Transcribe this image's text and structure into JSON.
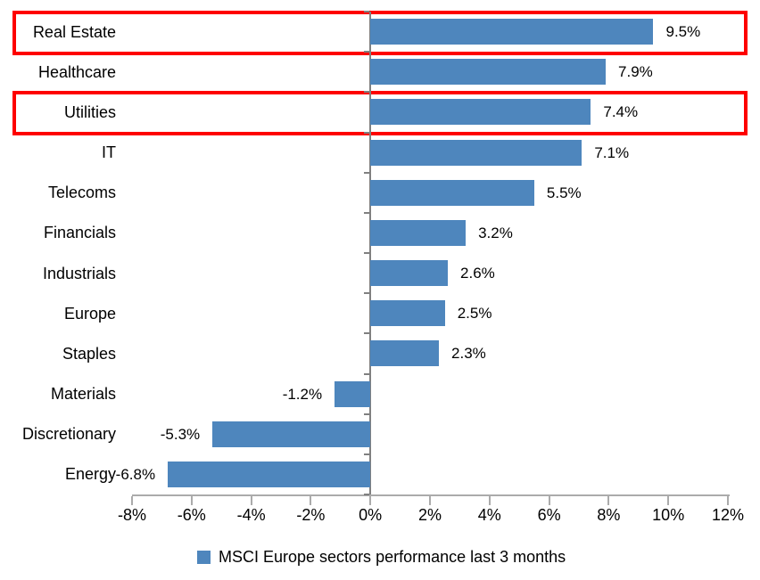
{
  "chart_data": {
    "type": "bar",
    "orientation": "horizontal",
    "title": "",
    "categories": [
      "Real Estate",
      "Healthcare",
      "Utilities",
      "IT",
      "Telecoms",
      "Financials",
      "Industrials",
      "Europe",
      "Staples",
      "Materials",
      "Discretionary",
      "Energy"
    ],
    "values": [
      9.5,
      7.9,
      7.4,
      7.1,
      5.5,
      3.2,
      2.6,
      2.5,
      2.3,
      -1.2,
      -5.3,
      -6.8
    ],
    "data_labels": [
      "9.5%",
      "7.9%",
      "7.4%",
      "7.1%",
      "5.5%",
      "3.2%",
      "2.6%",
      "2.5%",
      "2.3%",
      "-1.2%",
      "-5.3%",
      "-6.8%"
    ],
    "xlim": [
      -8,
      12
    ],
    "x_ticks": [
      -8,
      -6,
      -4,
      -2,
      0,
      2,
      4,
      6,
      8,
      10,
      12
    ],
    "x_tick_labels": [
      "-8%",
      "-6%",
      "-4%",
      "-2%",
      "0%",
      "2%",
      "4%",
      "6%",
      "8%",
      "10%",
      "12%"
    ],
    "grid": false,
    "legend_position": "bottom",
    "legend_label": "MSCI Europe sectors performance last 3 months",
    "bar_color": "#4e86bd",
    "axis_line_color": "#ababab",
    "zero_line_color": "#808080",
    "highlight_box_color": "#fe0000",
    "highlighted_categories": [
      "Real Estate",
      "Utilities"
    ]
  }
}
